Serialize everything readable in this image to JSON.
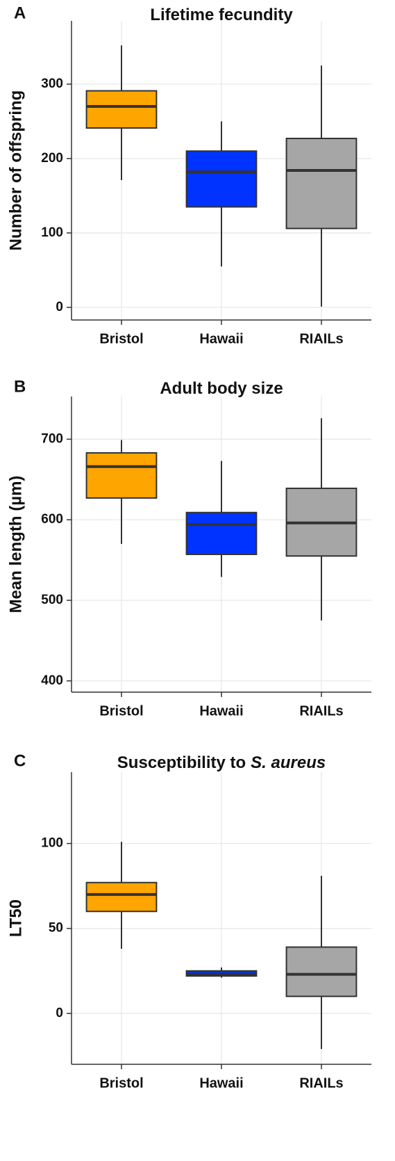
{
  "chart_data": [
    {
      "type": "box",
      "panel_label": "A",
      "title": "Lifetime fecundity",
      "y_label": "Number of offspring",
      "categories": [
        "Bristol",
        "Hawaii",
        "RIAILs"
      ],
      "colors": [
        "#ffa500",
        "#0033ff",
        "#a6a6a6"
      ],
      "boxes": [
        {
          "low": 171,
          "q1": 241,
          "median": 270,
          "q3": 291,
          "high": 352
        },
        {
          "low": 55,
          "q1": 135,
          "median": 182,
          "q3": 210,
          "high": 250
        },
        {
          "low": 1,
          "q1": 106,
          "median": 184,
          "q3": 227,
          "high": 325
        }
      ],
      "ylim": [
        -17,
        385
      ],
      "yticks": [
        0,
        100,
        200,
        300
      ],
      "grid": true
    },
    {
      "type": "box",
      "panel_label": "B",
      "title": "Adult body size",
      "y_label": "Mean length (µm)",
      "categories": [
        "Bristol",
        "Hawaii",
        "RIAILs"
      ],
      "colors": [
        "#ffa500",
        "#0033ff",
        "#a6a6a6"
      ],
      "boxes": [
        {
          "low": 570,
          "q1": 627,
          "median": 666,
          "q3": 683,
          "high": 699
        },
        {
          "low": 529,
          "q1": 557,
          "median": 594,
          "q3": 609,
          "high": 673
        },
        {
          "low": 475,
          "q1": 555,
          "median": 596,
          "q3": 639,
          "high": 726
        }
      ],
      "ylim": [
        386,
        753
      ],
      "yticks": [
        400,
        500,
        600,
        700
      ],
      "grid": true
    },
    {
      "type": "box",
      "panel_label": "C",
      "title": "Susceptibility to",
      "title_italic": "S. aureus",
      "y_label": "LT50",
      "categories": [
        "Bristol",
        "Hawaii",
        "RIAILs"
      ],
      "colors": [
        "#ffa500",
        "#0033ff",
        "#a6a6a6"
      ],
      "boxes": [
        {
          "low": 38,
          "q1": 60,
          "median": 70,
          "q3": 77,
          "high": 101
        },
        {
          "low": 21,
          "q1": 22,
          "median": 23,
          "q3": 25,
          "high": 27
        },
        {
          "low": -21,
          "q1": 10,
          "median": 23,
          "q3": 39,
          "high": 81
        }
      ],
      "ylim": [
        -30,
        142
      ],
      "yticks": [
        0,
        50,
        100
      ],
      "grid": true
    }
  ]
}
